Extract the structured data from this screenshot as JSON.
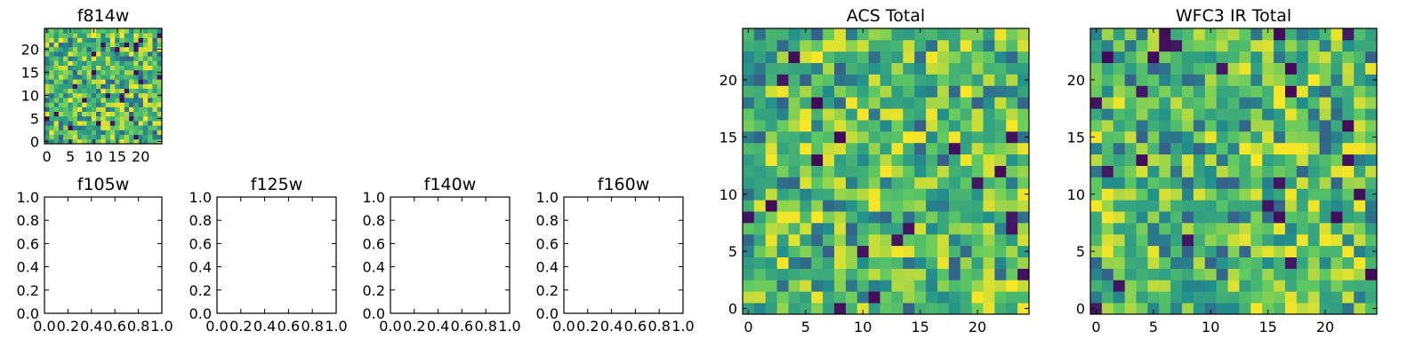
{
  "chart_data": [
    {
      "type": "heatmap",
      "title": "f814w",
      "colormap": "viridis",
      "grid_size": [
        25,
        25
      ],
      "xlim": [
        -0.5,
        24.5
      ],
      "ylim": [
        -0.5,
        24.5
      ],
      "xticks": [
        0,
        5,
        10,
        15,
        20
      ],
      "yticks": [
        0,
        5,
        10,
        15,
        20
      ],
      "random_seed": 814
    },
    {
      "type": "heatmap",
      "title": "f105w",
      "xlim": [
        0,
        1
      ],
      "ylim": [
        0,
        1
      ],
      "xticks": [
        "0.0",
        "0.2",
        "0.4",
        "0.6",
        "0.8",
        "1.0"
      ],
      "yticks": [
        "0.0",
        "0.2",
        "0.4",
        "0.6",
        "0.8",
        "1.0"
      ],
      "values": []
    },
    {
      "type": "heatmap",
      "title": "f125w",
      "xlim": [
        0,
        1
      ],
      "ylim": [
        0,
        1
      ],
      "xticks": [
        "0.0",
        "0.2",
        "0.4",
        "0.6",
        "0.8",
        "1.0"
      ],
      "yticks": [
        "0.0",
        "0.2",
        "0.4",
        "0.6",
        "0.8",
        "1.0"
      ],
      "values": []
    },
    {
      "type": "heatmap",
      "title": "f140w",
      "xlim": [
        0,
        1
      ],
      "ylim": [
        0,
        1
      ],
      "xticks": [
        "0.0",
        "0.2",
        "0.4",
        "0.6",
        "0.8",
        "1.0"
      ],
      "yticks": [
        "0.0",
        "0.2",
        "0.4",
        "0.6",
        "0.8",
        "1.0"
      ],
      "values": []
    },
    {
      "type": "heatmap",
      "title": "f160w",
      "xlim": [
        0,
        1
      ],
      "ylim": [
        0,
        1
      ],
      "xticks": [
        "0.0",
        "0.2",
        "0.4",
        "0.6",
        "0.8",
        "1.0"
      ],
      "yticks": [
        "0.0",
        "0.2",
        "0.4",
        "0.6",
        "0.8",
        "1.0"
      ],
      "values": []
    },
    {
      "type": "heatmap",
      "title": "ACS Total",
      "colormap": "viridis",
      "grid_size": [
        25,
        25
      ],
      "xlim": [
        -0.5,
        24.5
      ],
      "ylim": [
        -0.5,
        24.5
      ],
      "xticks": [
        0,
        5,
        10,
        15,
        20
      ],
      "yticks": [
        0,
        5,
        10,
        15,
        20
      ],
      "random_seed": 1001
    },
    {
      "type": "heatmap",
      "title": "WFC3 IR Total",
      "colormap": "viridis",
      "grid_size": [
        25,
        25
      ],
      "xlim": [
        -0.5,
        24.5
      ],
      "ylim": [
        -0.5,
        24.5
      ],
      "xticks": [
        0,
        5,
        10,
        15,
        20
      ],
      "yticks": [
        0,
        5,
        10,
        15,
        20
      ],
      "random_seed": 2002
    }
  ]
}
